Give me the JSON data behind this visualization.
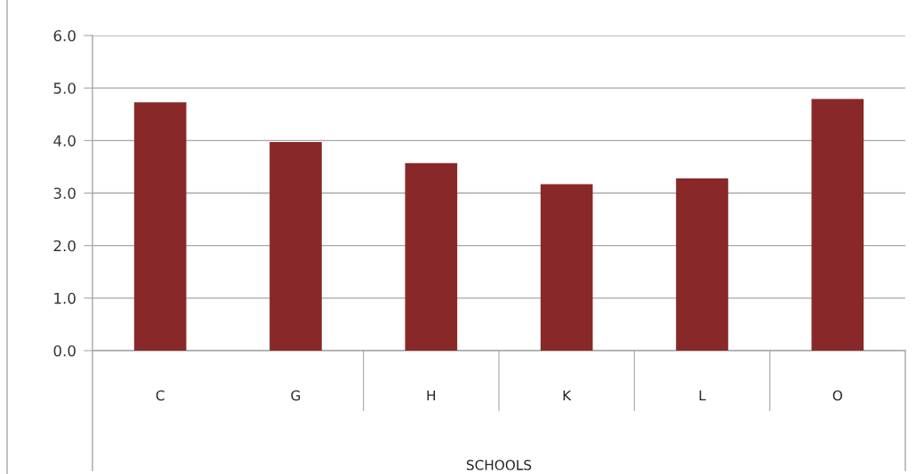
{
  "chart_data": {
    "type": "bar",
    "xlabel": "SCHOOLS",
    "categories": [
      "C",
      "G",
      "H",
      "K",
      "L",
      "O"
    ],
    "values": [
      4.73,
      3.97,
      3.57,
      3.17,
      3.28,
      4.79
    ],
    "color": "#882828",
    "ylim": [
      0,
      6
    ],
    "yticks": [
      {
        "value": 0,
        "label": "0.0"
      },
      {
        "value": 1,
        "label": "1.0"
      },
      {
        "value": 2,
        "label": "2.0"
      },
      {
        "value": 3,
        "label": "3.0"
      },
      {
        "value": 4,
        "label": "4.0"
      },
      {
        "value": 5,
        "label": "5.0"
      },
      {
        "value": 6,
        "label": "6.0"
      }
    ],
    "grid": "y"
  }
}
